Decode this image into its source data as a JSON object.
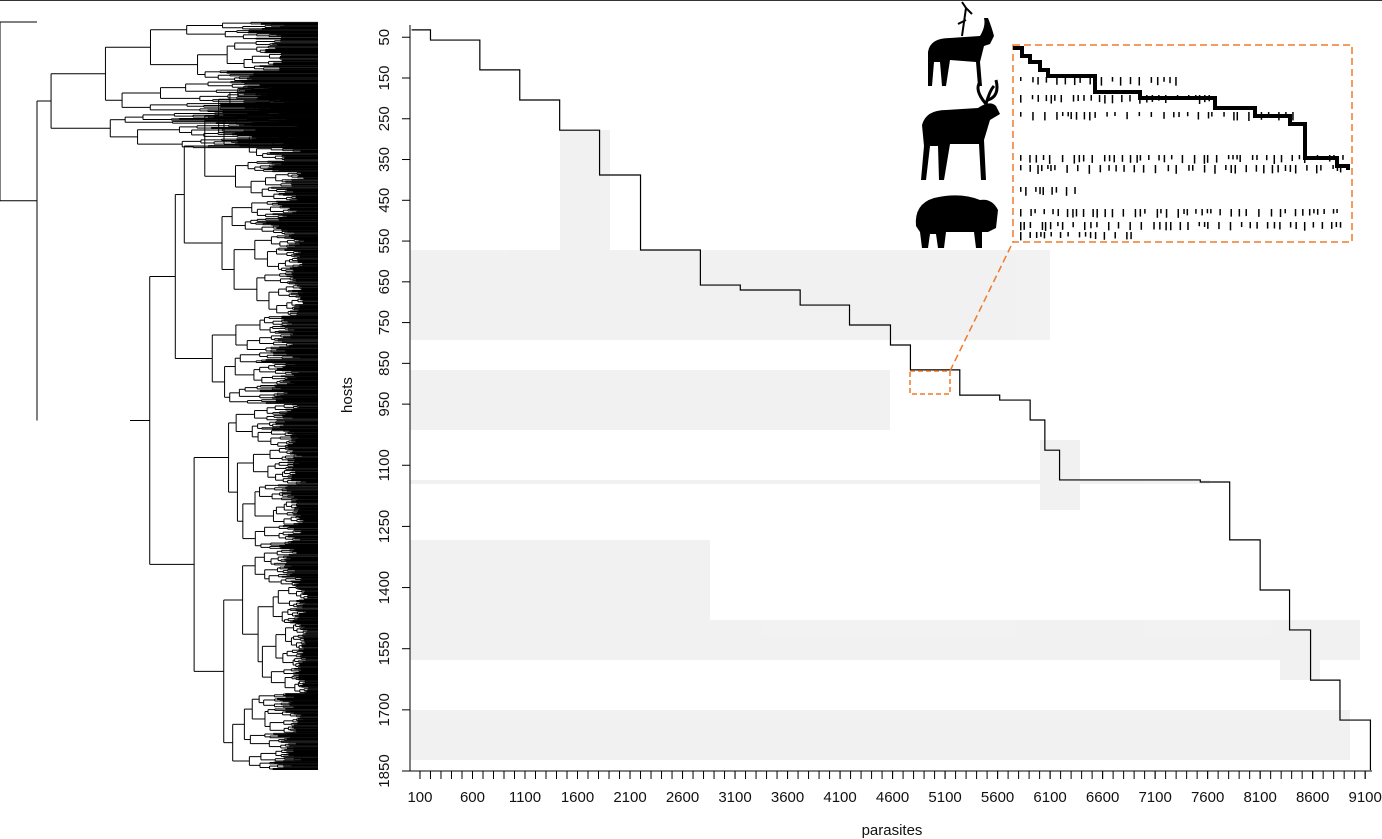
{
  "chart_data": {
    "type": "matrix",
    "xlabel": "parasites",
    "ylabel": "hosts",
    "xlim": [
      5,
      9165
    ],
    "ylim": [
      1850,
      20
    ],
    "xticks": [
      100,
      600,
      1100,
      1600,
      2100,
      2600,
      3100,
      3600,
      4100,
      4600,
      5100,
      5600,
      6100,
      6600,
      7100,
      7600,
      8100,
      8600,
      9100
    ],
    "xminorticks": [
      100,
      200,
      300,
      400,
      500,
      600,
      700,
      800,
      900,
      1000,
      1100,
      1200,
      1300,
      1400,
      1500,
      1600,
      1700,
      1800,
      1900,
      2000,
      2100,
      2200,
      2300,
      2400,
      2500,
      2600,
      2700,
      2800,
      2900,
      3000,
      3100,
      3200,
      3300,
      3400,
      3500,
      3600,
      3700,
      3800,
      3900,
      4000,
      4100,
      4200,
      4300,
      4400,
      4500,
      4600,
      4700,
      4800,
      4900,
      5000,
      5100,
      5200,
      5300,
      5400,
      5500,
      5600,
      5700,
      5800,
      5900,
      6000,
      6100,
      6200,
      6300,
      6400,
      6500,
      6600,
      6700,
      6800,
      6900,
      7000,
      7100,
      7200,
      7300,
      7400,
      7500,
      7600,
      7700,
      7800,
      7900,
      8000,
      8100,
      8200,
      8300,
      8400,
      8500,
      8600,
      8700,
      8800,
      8900,
      9000,
      9100
    ],
    "yticks": [
      50,
      150,
      250,
      350,
      450,
      550,
      650,
      750,
      850,
      950,
      1100,
      1250,
      1400,
      1550,
      1700,
      1850
    ],
    "x": [
      20,
      200,
      670,
      1050,
      1430,
      1810,
      2200,
      2770,
      3150,
      3720,
      4190,
      4580,
      4770,
      5240,
      5620,
      5910,
      6050,
      6190,
      7530,
      7810,
      8100,
      8380,
      8580,
      8860,
      9150
    ],
    "values": [
      32,
      57,
      130,
      204,
      278,
      388,
      572,
      658,
      670,
      707,
      756,
      805,
      866,
      928,
      940,
      989,
      1063,
      1136,
      1141,
      1283,
      1406,
      1504,
      1627,
      1725,
      1848
    ],
    "color": "#000000",
    "highlight_color": "#f07a2a"
  }
}
